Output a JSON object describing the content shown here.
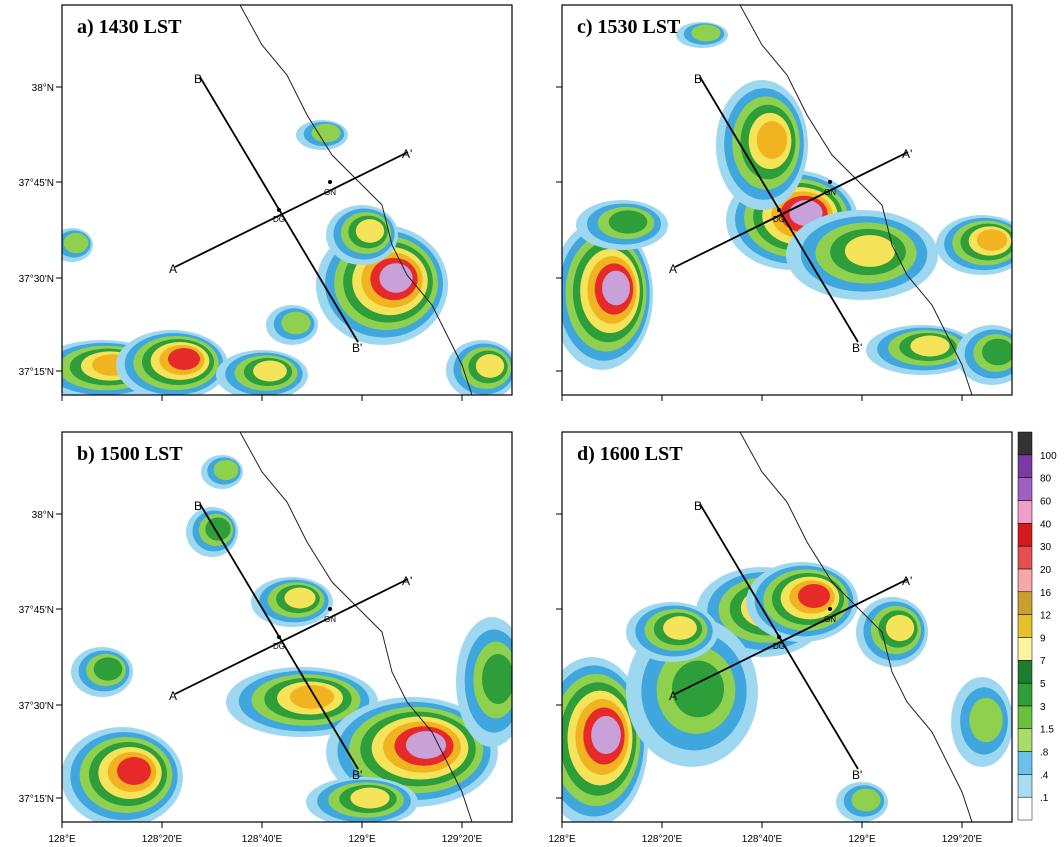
{
  "panels": [
    {
      "label": "a) 1430 LST"
    },
    {
      "label": "c) 1530 LST"
    },
    {
      "label": "b) 1500 LST"
    },
    {
      "label": "d) 1600 LST"
    }
  ],
  "y_tick_labels": [
    "38°N",
    "37°45'N",
    "37°30'N",
    "37°15'N"
  ],
  "x_tick_labels": [
    "128°E",
    "128°20'E",
    "128°40'E",
    "129°E",
    "129°20'E"
  ],
  "points": {
    "A": "A",
    "A_prime": "A'",
    "B": "B",
    "B_prime": "B'",
    "DG": "DG",
    "GN": "GN"
  },
  "colorbar": {
    "labels": [
      "100",
      "80",
      "60",
      "40",
      "30",
      "20",
      "16",
      "12",
      "9",
      "7",
      "5",
      "3",
      "1.5",
      ".8",
      ".4",
      ".1"
    ]
  }
}
